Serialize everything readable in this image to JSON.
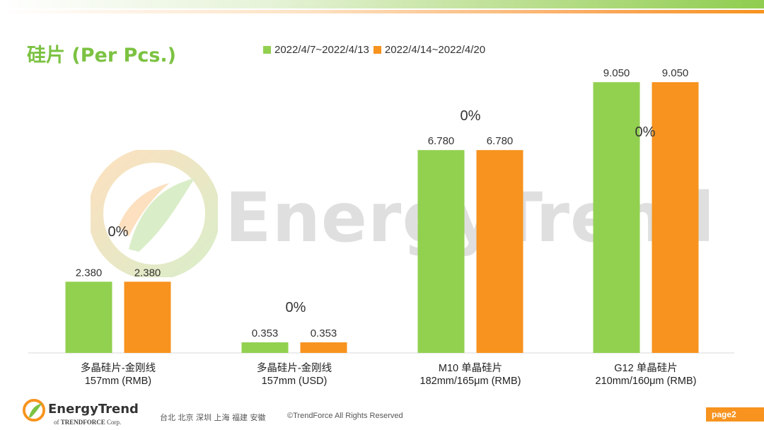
{
  "title": "硅片 (Per Pcs.)",
  "watermark": "EnergyTrend",
  "colors": {
    "accent_green": "#7cc242",
    "accent_orange": "#f7931e"
  },
  "chart_data": {
    "type": "bar",
    "categories": [
      [
        "多晶硅片-金刚线",
        "157mm (RMB)"
      ],
      [
        "多晶硅片-金刚线",
        "157mm (USD)"
      ],
      [
        "M10 单晶硅片",
        "182mm/165μm (RMB)"
      ],
      [
        "G12 单晶硅片",
        "210mm/160μm  (RMB)"
      ]
    ],
    "series": [
      {
        "name": "2022/4/7~2022/4/13",
        "color": "#92d050",
        "values": [
          2.38,
          0.353,
          6.78,
          9.05
        ],
        "labels": [
          "2.380",
          "0.353",
          "6.780",
          "9.050"
        ]
      },
      {
        "name": "2022/4/14~2022/4/20",
        "color": "#f7931e",
        "values": [
          2.38,
          0.353,
          6.78,
          9.05
        ],
        "labels": [
          "2.380",
          "0.353",
          "6.780",
          "9.050"
        ]
      }
    ],
    "change_labels": [
      "0%",
      "0%",
      "0%",
      "0%"
    ],
    "ylim": [
      0,
      10
    ],
    "grid": false,
    "legend_position": "top"
  },
  "footer": {
    "brand_name": "EnergyTrend",
    "brand_sub_prefix": "of",
    "brand_sub_name": "TRENDFORCE",
    "brand_sub_suffix": "Corp.",
    "cities": "台北  北京  深圳  上海  福建  安徽",
    "copyright": "©TrendForce All Rights Reserved",
    "page": "page2"
  }
}
